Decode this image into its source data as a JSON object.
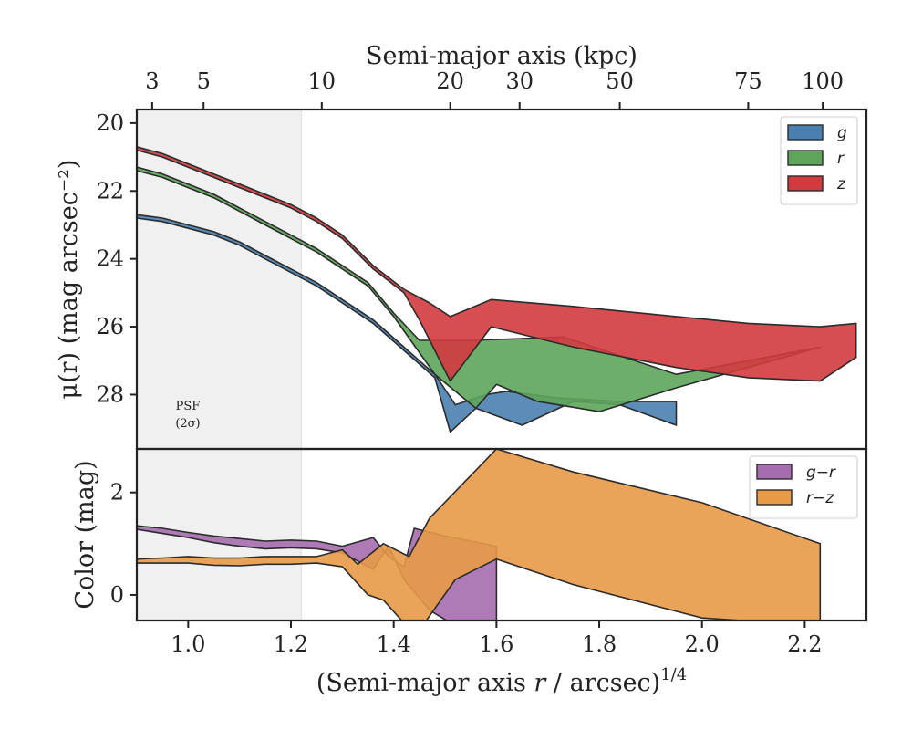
{
  "chart_data": [
    {
      "type": "area",
      "panel": "surface-brightness",
      "xlabel_top": "Semi-major axis (kpc)",
      "ylabel": "μ(r) (mag arcsec⁻²)",
      "ylim": [
        29.6,
        19.6
      ],
      "yticks": [
        20,
        22,
        24,
        26,
        28
      ],
      "top_ticks": [
        {
          "label": "3",
          "x": 0.93
        },
        {
          "label": "5",
          "x": 1.03
        },
        {
          "label": "10",
          "x": 1.26
        },
        {
          "label": "20",
          "x": 1.51
        },
        {
          "label": "30",
          "x": 1.645
        },
        {
          "label": "50",
          "x": 1.84
        },
        {
          "label": "75",
          "x": 2.09
        },
        {
          "label": "100",
          "x": 2.235
        }
      ],
      "shade_region": {
        "x": [
          0.9,
          1.22
        ],
        "label_line1": "PSF",
        "label_line2": "(2σ)"
      },
      "series": [
        {
          "name": "g",
          "color": "#4a7fb0",
          "upper": [
            [
              0.9,
              22.7
            ],
            [
              0.95,
              22.8
            ],
            [
              1.0,
              23.0
            ],
            [
              1.05,
              23.2
            ],
            [
              1.1,
              23.5
            ],
            [
              1.15,
              23.9
            ],
            [
              1.2,
              24.3
            ],
            [
              1.25,
              24.7
            ],
            [
              1.3,
              25.2
            ],
            [
              1.36,
              25.8
            ],
            [
              1.42,
              26.6
            ],
            [
              1.48,
              27.4
            ],
            [
              1.52,
              28.3
            ],
            [
              1.58,
              28.0
            ],
            [
              1.62,
              27.9
            ],
            [
              1.72,
              28.1
            ],
            [
              1.84,
              28.2
            ],
            [
              1.95,
              28.2
            ]
          ],
          "lower": [
            [
              0.9,
              22.8
            ],
            [
              0.95,
              22.9
            ],
            [
              1.0,
              23.1
            ],
            [
              1.05,
              23.3
            ],
            [
              1.1,
              23.6
            ],
            [
              1.15,
              24.0
            ],
            [
              1.2,
              24.4
            ],
            [
              1.25,
              24.8
            ],
            [
              1.3,
              25.3
            ],
            [
              1.36,
              25.9
            ],
            [
              1.42,
              26.7
            ],
            [
              1.48,
              27.5
            ],
            [
              1.51,
              29.1
            ],
            [
              1.56,
              28.4
            ],
            [
              1.65,
              28.9
            ],
            [
              1.75,
              28.2
            ],
            [
              1.84,
              28.3
            ],
            [
              1.95,
              28.9
            ]
          ]
        },
        {
          "name": "r",
          "color": "#5ea55b",
          "upper": [
            [
              0.9,
              21.3
            ],
            [
              0.95,
              21.5
            ],
            [
              1.0,
              21.8
            ],
            [
              1.05,
              22.1
            ],
            [
              1.1,
              22.5
            ],
            [
              1.15,
              22.9
            ],
            [
              1.2,
              23.3
            ],
            [
              1.25,
              23.7
            ],
            [
              1.3,
              24.2
            ],
            [
              1.35,
              24.7
            ],
            [
              1.4,
              25.6
            ],
            [
              1.45,
              26.4
            ],
            [
              1.55,
              26.4
            ],
            [
              1.65,
              26.35
            ],
            [
              1.73,
              26.3
            ],
            [
              1.85,
              26.9
            ],
            [
              1.95,
              27.4
            ]
          ],
          "lower": [
            [
              0.9,
              21.4
            ],
            [
              0.95,
              21.6
            ],
            [
              1.0,
              21.9
            ],
            [
              1.05,
              22.2
            ],
            [
              1.1,
              22.6
            ],
            [
              1.15,
              23.0
            ],
            [
              1.2,
              23.4
            ],
            [
              1.25,
              23.8
            ],
            [
              1.3,
              24.3
            ],
            [
              1.35,
              24.8
            ],
            [
              1.4,
              25.7
            ],
            [
              1.48,
              27.4
            ],
            [
              1.56,
              28.4
            ],
            [
              1.6,
              27.7
            ],
            [
              1.68,
              28.2
            ],
            [
              1.8,
              28.5
            ],
            [
              1.95,
              27.8
            ],
            [
              2.23,
              26.6
            ]
          ]
        },
        {
          "name": "z",
          "color": "#d13a3f",
          "upper": [
            [
              0.9,
              20.7
            ],
            [
              0.95,
              20.9
            ],
            [
              1.0,
              21.2
            ],
            [
              1.05,
              21.5
            ],
            [
              1.1,
              21.8
            ],
            [
              1.15,
              22.1
            ],
            [
              1.2,
              22.4
            ],
            [
              1.25,
              22.8
            ],
            [
              1.3,
              23.3
            ],
            [
              1.36,
              24.2
            ],
            [
              1.42,
              24.9
            ],
            [
              1.47,
              25.3
            ],
            [
              1.51,
              25.7
            ],
            [
              1.59,
              25.2
            ],
            [
              1.75,
              25.4
            ],
            [
              1.95,
              25.7
            ],
            [
              2.09,
              25.9
            ],
            [
              2.23,
              26.0
            ],
            [
              2.3,
              25.9
            ]
          ],
          "lower": [
            [
              0.9,
              20.8
            ],
            [
              0.95,
              21.0
            ],
            [
              1.0,
              21.3
            ],
            [
              1.05,
              21.6
            ],
            [
              1.1,
              21.9
            ],
            [
              1.15,
              22.2
            ],
            [
              1.2,
              22.5
            ],
            [
              1.25,
              22.9
            ],
            [
              1.3,
              23.4
            ],
            [
              1.36,
              24.3
            ],
            [
              1.42,
              25.0
            ],
            [
              1.45,
              25.8
            ],
            [
              1.51,
              27.6
            ],
            [
              1.59,
              26.0
            ],
            [
              1.75,
              26.6
            ],
            [
              1.95,
              27.2
            ],
            [
              2.09,
              27.5
            ],
            [
              2.23,
              27.6
            ],
            [
              2.3,
              26.9
            ]
          ]
        }
      ],
      "legend": {
        "position": "upper right",
        "entries": [
          "g",
          "r",
          "z"
        ]
      }
    },
    {
      "type": "area",
      "panel": "color",
      "xlabel": "(Semi-major axis r / arcsec)¹ᐟ⁴",
      "xlabel_main": "(Semi-major axis ",
      "xlabel_var": "r",
      "xlabel_rest": " / arcsec)",
      "xlabel_sup": "1/4",
      "ylabel": "Color (mag)",
      "xlim": [
        0.9,
        2.32
      ],
      "ylim": [
        -0.5,
        2.85
      ],
      "xticks": [
        "1.0",
        "1.2",
        "1.4",
        "1.6",
        "1.8",
        "2.0",
        "2.2"
      ],
      "yticks": [
        "0",
        "2"
      ],
      "series": [
        {
          "name": "g−r",
          "color": "#a56daf",
          "upper": [
            [
              0.9,
              1.35
            ],
            [
              0.95,
              1.3
            ],
            [
              1.0,
              1.22
            ],
            [
              1.05,
              1.15
            ],
            [
              1.1,
              1.1
            ],
            [
              1.15,
              1.05
            ],
            [
              1.2,
              1.07
            ],
            [
              1.25,
              1.05
            ],
            [
              1.3,
              0.95
            ],
            [
              1.36,
              1.12
            ],
            [
              1.39,
              0.75
            ],
            [
              1.42,
              0.55
            ],
            [
              1.44,
              1.3
            ],
            [
              1.5,
              1.15
            ],
            [
              1.55,
              1.05
            ],
            [
              1.6,
              0.95
            ]
          ],
          "lower": [
            [
              0.9,
              1.28
            ],
            [
              0.95,
              1.2
            ],
            [
              1.0,
              1.12
            ],
            [
              1.05,
              1.02
            ],
            [
              1.1,
              0.95
            ],
            [
              1.15,
              0.9
            ],
            [
              1.2,
              0.92
            ],
            [
              1.25,
              0.9
            ],
            [
              1.3,
              0.82
            ],
            [
              1.36,
              0.5
            ],
            [
              1.39,
              0.95
            ],
            [
              1.42,
              0.3
            ],
            [
              1.47,
              -0.3
            ],
            [
              1.52,
              -0.6
            ],
            [
              1.6,
              -0.6
            ],
            [
              1.6,
              0.8
            ]
          ]
        },
        {
          "name": "r−z",
          "color": "#e89a47",
          "upper": [
            [
              0.9,
              0.7
            ],
            [
              0.95,
              0.72
            ],
            [
              1.0,
              0.75
            ],
            [
              1.05,
              0.72
            ],
            [
              1.1,
              0.72
            ],
            [
              1.15,
              0.75
            ],
            [
              1.2,
              0.75
            ],
            [
              1.25,
              0.75
            ],
            [
              1.3,
              0.88
            ],
            [
              1.33,
              0.6
            ],
            [
              1.38,
              1.0
            ],
            [
              1.43,
              0.75
            ],
            [
              1.47,
              1.5
            ],
            [
              1.6,
              2.85
            ],
            [
              1.75,
              2.4
            ],
            [
              2.0,
              1.8
            ],
            [
              2.23,
              1.0
            ]
          ],
          "lower": [
            [
              0.9,
              0.62
            ],
            [
              0.95,
              0.62
            ],
            [
              1.0,
              0.62
            ],
            [
              1.05,
              0.58
            ],
            [
              1.1,
              0.57
            ],
            [
              1.15,
              0.6
            ],
            [
              1.2,
              0.6
            ],
            [
              1.25,
              0.62
            ],
            [
              1.3,
              0.55
            ],
            [
              1.35,
              0.0
            ],
            [
              1.38,
              -0.1
            ],
            [
              1.42,
              -0.55
            ],
            [
              1.46,
              -0.55
            ],
            [
              1.52,
              0.3
            ],
            [
              1.6,
              0.7
            ],
            [
              1.75,
              0.2
            ],
            [
              2.0,
              -0.45
            ],
            [
              2.23,
              -0.6
            ]
          ]
        }
      ],
      "legend": {
        "position": "upper right",
        "entries": [
          "g−r",
          "r−z"
        ]
      }
    }
  ]
}
